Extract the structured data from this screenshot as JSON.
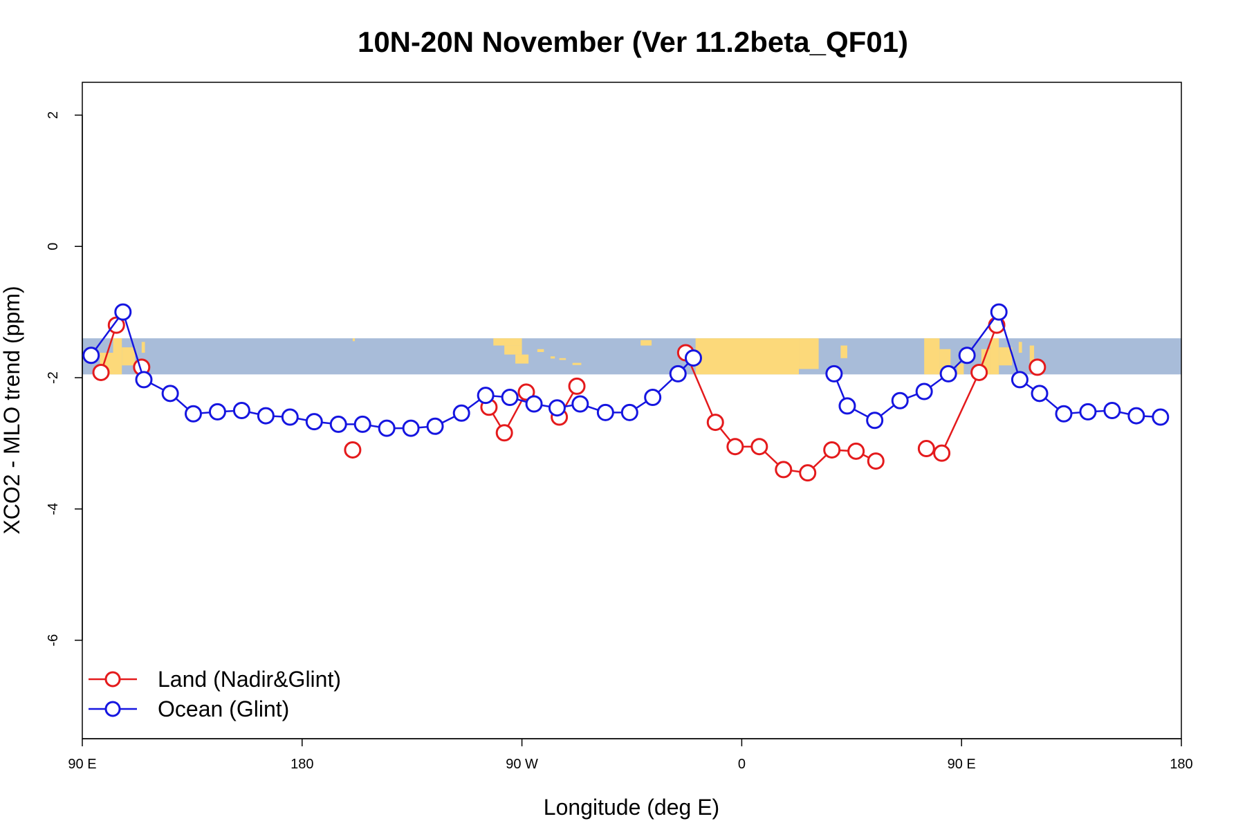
{
  "chart_data": {
    "type": "line",
    "title": "10N-20N November (Ver 11.2beta_QF01)",
    "xlabel": "Longitude (deg E)",
    "ylabel": "XCO2 - MLO trend (ppm)",
    "xlim": [
      90,
      590
    ],
    "ylim": [
      -7.5,
      2.5
    ],
    "x_ticks": [
      {
        "value": 90,
        "label": "90 E"
      },
      {
        "value": 190,
        "label": "180"
      },
      {
        "value": 290,
        "label": "90 W"
      },
      {
        "value": 390,
        "label": "0"
      },
      {
        "value": 490,
        "label": "90 E"
      },
      {
        "value": 590,
        "label": "180"
      }
    ],
    "y_ticks": [
      {
        "value": 2,
        "label": "2"
      },
      {
        "value": 0,
        "label": "0"
      },
      {
        "value": -2,
        "label": "-2"
      },
      {
        "value": -4,
        "label": "-4"
      },
      {
        "value": -6,
        "label": "-6"
      }
    ],
    "map_band": {
      "ymin": -1.95,
      "ymax": -1.4,
      "ocean_color": "#a8bcd9",
      "land_color": "#fcd97a"
    },
    "legend": {
      "position": "bottom-left"
    },
    "series": [
      {
        "name": "Land (Nadir&Glint)",
        "color": "#e41a1c",
        "segments": [
          [
            [
              98.5,
              -1.92
            ],
            [
              105.5,
              -1.2
            ]
          ],
          [
            [
              117,
              -1.84
            ]
          ],
          [
            [
              213,
              -3.1
            ]
          ],
          [
            [
              275,
              -2.45
            ],
            [
              282,
              -2.84
            ],
            [
              292,
              -2.22
            ]
          ],
          [
            [
              307,
              -2.6
            ],
            [
              315,
              -2.13
            ]
          ],
          [
            [
              364.5,
              -1.62
            ],
            [
              378,
              -2.68
            ],
            [
              387,
              -3.05
            ],
            [
              398,
              -3.05
            ],
            [
              409,
              -3.4
            ],
            [
              420,
              -3.45
            ],
            [
              431,
              -3.1
            ],
            [
              442,
              -3.12
            ],
            [
              451,
              -3.27
            ]
          ],
          [
            [
              474,
              -3.08
            ],
            [
              481,
              -3.15
            ],
            [
              498,
              -1.92
            ],
            [
              506,
              -1.2
            ]
          ],
          [
            [
              524.5,
              -1.84
            ]
          ]
        ]
      },
      {
        "name": "Ocean (Glint)",
        "color": "#1515e0",
        "segments": [
          [
            [
              94,
              -1.66
            ],
            [
              108.5,
              -1.0
            ],
            [
              118,
              -2.03
            ],
            [
              130,
              -2.24
            ],
            [
              140.5,
              -2.55
            ],
            [
              151.5,
              -2.52
            ],
            [
              162.5,
              -2.5
            ],
            [
              173.5,
              -2.58
            ],
            [
              184.5,
              -2.6
            ],
            [
              195.5,
              -2.67
            ],
            [
              206.5,
              -2.71
            ],
            [
              217.5,
              -2.71
            ],
            [
              228.5,
              -2.77
            ],
            [
              239.5,
              -2.77
            ],
            [
              250.5,
              -2.74
            ],
            [
              262.5,
              -2.54
            ],
            [
              273.5,
              -2.27
            ],
            [
              284.5,
              -2.3
            ],
            [
              295.5,
              -2.4
            ],
            [
              306,
              -2.46
            ],
            [
              316.5,
              -2.4
            ],
            [
              328,
              -2.53
            ],
            [
              339,
              -2.53
            ],
            [
              349.5,
              -2.3
            ],
            [
              361,
              -1.94
            ],
            [
              368,
              -1.7
            ]
          ],
          [
            [
              432,
              -1.94
            ],
            [
              438,
              -2.43
            ],
            [
              450.5,
              -2.65
            ],
            [
              462,
              -2.35
            ],
            [
              473,
              -2.21
            ],
            [
              484,
              -1.94
            ],
            [
              492.5,
              -1.66
            ],
            [
              507,
              -1.0
            ],
            [
              516.5,
              -2.03
            ],
            [
              525.5,
              -2.24
            ],
            [
              536.5,
              -2.55
            ],
            [
              547.5,
              -2.52
            ],
            [
              558.5,
              -2.5
            ],
            [
              569.5,
              -2.58
            ],
            [
              580.5,
              -2.6
            ]
          ]
        ]
      }
    ]
  }
}
